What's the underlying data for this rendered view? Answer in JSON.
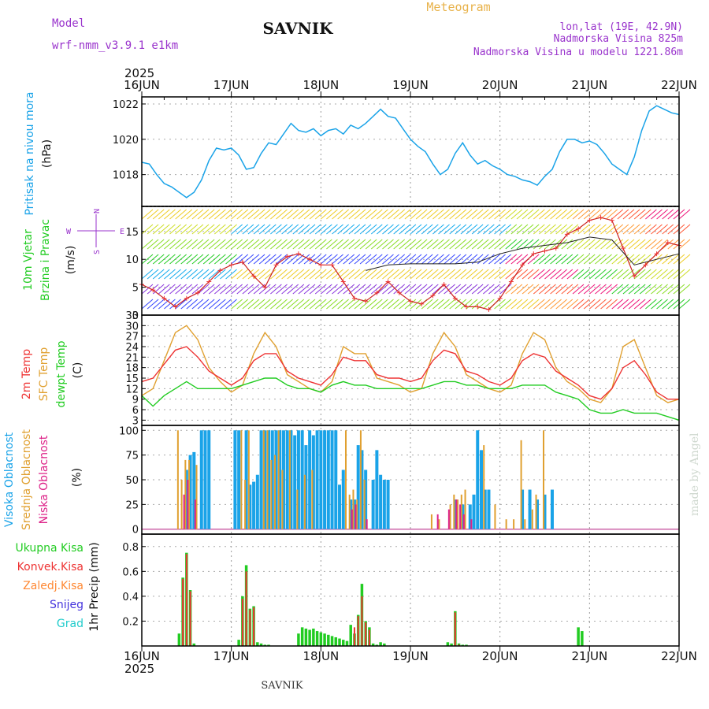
{
  "header": {
    "model_label": "Model",
    "model_name": "wrf-nmm_v3.9.1 e1km",
    "station": "SAVNIK",
    "product": "Meteogram",
    "lonlat": "lon,lat (19E, 42.9N)",
    "elevation": "Nadmorska Visina 825m",
    "model_elevation": "Nadmorska Visina u modelu 1221.86m",
    "year": "2025",
    "footer_station": "SAVNIK",
    "credit": "made by Angel"
  },
  "time_axis": {
    "range_hours": [
      0,
      144
    ],
    "ticks": [
      {
        "h": 0,
        "label": "16JUN"
      },
      {
        "h": 24,
        "label": "17JUN"
      },
      {
        "h": 48,
        "label": "18JUN"
      },
      {
        "h": 72,
        "label": "19JUN"
      },
      {
        "h": 96,
        "label": "20JUN"
      },
      {
        "h": 120,
        "label": "21JUN"
      },
      {
        "h": 144,
        "label": "22JUN"
      }
    ]
  },
  "colors": {
    "pressure": "#1aa3e8",
    "temp2m": "#ee3333",
    "sfc": "#e0a030",
    "dewpt": "#22cc22",
    "high_cloud": "#1aa3e8",
    "mid_cloud": "#e0a030",
    "low_cloud": "#dd2288",
    "rain_total": "#22cc22",
    "rain_conv": "#ee3333",
    "freezing": "#ff8833",
    "snow": "#4433dd",
    "hail": "#22cccc",
    "wind_label": "#22cc22",
    "compass": "#9933cc",
    "header": "#9933cc",
    "product": "#e8b24a"
  },
  "chart_data": [
    {
      "type": "line",
      "panel": "pressure",
      "ylabel_lines": [
        "Pritisak na nivou mora",
        "(hPa)"
      ],
      "ylim": [
        1016.2,
        1022.4
      ],
      "yticks": [
        1018,
        1020,
        1022
      ],
      "series": [
        {
          "hours": [
            0,
            2,
            4,
            6,
            8,
            10,
            12,
            14,
            16,
            18,
            20,
            22,
            24,
            26,
            28,
            30,
            32,
            34,
            36,
            38,
            40,
            42,
            44,
            46,
            48,
            50,
            52,
            54,
            56,
            58,
            60,
            62,
            64,
            66,
            68,
            70,
            72,
            74,
            76,
            78,
            80,
            82,
            84,
            86,
            88,
            90,
            92,
            94,
            96,
            98,
            100,
            102,
            104,
            106,
            108,
            110,
            112,
            114,
            116,
            118,
            120,
            122,
            124,
            126,
            128,
            130,
            132,
            134,
            136,
            138,
            140,
            142,
            144
          ],
          "values": [
            1018.7,
            1018.6,
            1018.0,
            1017.5,
            1017.3,
            1017.0,
            1016.7,
            1017.0,
            1017.7,
            1018.8,
            1019.5,
            1019.4,
            1019.5,
            1019.1,
            1018.3,
            1018.4,
            1019.2,
            1019.8,
            1019.7,
            1020.3,
            1020.9,
            1020.5,
            1020.4,
            1020.6,
            1020.2,
            1020.5,
            1020.6,
            1020.3,
            1020.8,
            1020.6,
            1020.9,
            1021.3,
            1021.7,
            1021.3,
            1021.2,
            1020.6,
            1020.0,
            1019.6,
            1019.3,
            1018.6,
            1018.0,
            1018.3,
            1019.2,
            1019.8,
            1019.1,
            1018.6,
            1018.8,
            1018.5,
            1018.3,
            1018.0,
            1017.9,
            1017.7,
            1017.6,
            1017.4,
            1017.9,
            1018.3,
            1019.3,
            1020.0,
            1020.0,
            1019.8,
            1019.9,
            1019.7,
            1019.2,
            1018.6,
            1018.3,
            1018.0,
            1019.0,
            1020.5,
            1021.6,
            1021.9,
            1021.7,
            1021.5,
            1021.4
          ]
        }
      ]
    },
    {
      "type": "barbs",
      "panel": "wind",
      "ylabel_lines": [
        "10m Vjetar",
        "Brzina i Pravac",
        "(m/s)"
      ],
      "compass": {
        "n": "N",
        "s": "S",
        "w": "W",
        "e": "E"
      },
      "ylim": [
        0,
        19.5
      ],
      "yticks": [
        0,
        5,
        10,
        15
      ],
      "speed_series": {
        "name": "speed",
        "hours": [
          0,
          3,
          6,
          9,
          12,
          15,
          18,
          21,
          24,
          27,
          30,
          33,
          36,
          39,
          42,
          45,
          48,
          51,
          54,
          57,
          60,
          63,
          66,
          69,
          72,
          75,
          78,
          81,
          84,
          87,
          90,
          93,
          96,
          99,
          102,
          105,
          108,
          111,
          114,
          117,
          120,
          123,
          126,
          129,
          132,
          135,
          138,
          141,
          144
        ],
        "values": [
          5.5,
          4.5,
          3,
          1.5,
          3,
          4,
          6,
          8,
          9,
          9.5,
          7,
          5,
          9,
          10.5,
          11,
          10,
          9,
          9,
          6,
          3,
          2.5,
          4,
          6,
          4,
          2.5,
          2,
          3.5,
          5.5,
          3,
          1.5,
          1.5,
          1,
          3,
          6,
          9,
          11,
          11.5,
          12,
          14.5,
          15.5,
          17,
          17.5,
          17,
          12,
          7,
          9,
          11,
          13,
          12.5
        ]
      },
      "gust_series": {
        "name": "gust",
        "hours": [
          60,
          66,
          72,
          78,
          84,
          90,
          96,
          102,
          108,
          114,
          120,
          126,
          132,
          138,
          144
        ],
        "values": [
          8,
          9,
          9.2,
          9.2,
          9.2,
          9.5,
          11,
          12,
          12.5,
          13,
          14,
          13.5,
          9,
          10,
          11
        ]
      }
    },
    {
      "type": "line",
      "panel": "temperature",
      "ylabel_lines": [
        "2m Temp",
        "SFC Temp",
        "dewpt Temp",
        "(C)"
      ],
      "ylim": [
        1.5,
        33
      ],
      "yticks": [
        3,
        6,
        9,
        12,
        15,
        18,
        21,
        24,
        27,
        30,
        33
      ],
      "series": [
        {
          "key": "sfc",
          "hours": [
            0,
            3,
            6,
            9,
            12,
            15,
            18,
            21,
            24,
            27,
            30,
            33,
            36,
            39,
            42,
            45,
            48,
            51,
            54,
            57,
            60,
            63,
            66,
            69,
            72,
            75,
            78,
            81,
            84,
            87,
            90,
            93,
            96,
            99,
            102,
            105,
            108,
            111,
            114,
            117,
            120,
            123,
            126,
            129,
            132,
            135,
            138,
            141,
            144
          ],
          "values": [
            10,
            12,
            20,
            28,
            30,
            26,
            18,
            14,
            11,
            13,
            22,
            28,
            24,
            16,
            14,
            12,
            11,
            14,
            24,
            22,
            22,
            15,
            14,
            13,
            11,
            12,
            22,
            28,
            24,
            16,
            14,
            12,
            11,
            13,
            22,
            28,
            26,
            18,
            14,
            12,
            9,
            8,
            12,
            24,
            26,
            18,
            10,
            8,
            9
          ]
        },
        {
          "key": "temp2m",
          "hours": [
            0,
            3,
            6,
            9,
            12,
            15,
            18,
            21,
            24,
            27,
            30,
            33,
            36,
            39,
            42,
            45,
            48,
            51,
            54,
            57,
            60,
            63,
            66,
            69,
            72,
            75,
            78,
            81,
            84,
            87,
            90,
            93,
            96,
            99,
            102,
            105,
            108,
            111,
            114,
            117,
            120,
            123,
            126,
            129,
            132,
            135,
            138,
            141,
            144
          ],
          "values": [
            14,
            15,
            19,
            23,
            24,
            21,
            17,
            15,
            13,
            15,
            20,
            22,
            22,
            17,
            15,
            14,
            13,
            16,
            21,
            20,
            20,
            16,
            15,
            15,
            14,
            15,
            20,
            23,
            22,
            17,
            16,
            14,
            13,
            15,
            20,
            22,
            21,
            17,
            15,
            13,
            10,
            9,
            12,
            18,
            20,
            16,
            11,
            9,
            9
          ]
        },
        {
          "key": "dewpt",
          "hours": [
            0,
            3,
            6,
            9,
            12,
            15,
            18,
            21,
            24,
            27,
            30,
            33,
            36,
            39,
            42,
            45,
            48,
            51,
            54,
            57,
            60,
            63,
            66,
            69,
            72,
            75,
            78,
            81,
            84,
            87,
            90,
            93,
            96,
            99,
            102,
            105,
            108,
            111,
            114,
            117,
            120,
            123,
            126,
            129,
            132,
            135,
            138,
            141,
            144
          ],
          "values": [
            10,
            7,
            10,
            12,
            14,
            12,
            12,
            12,
            12,
            13,
            14,
            15,
            15,
            13,
            12,
            12,
            11,
            13,
            14,
            13,
            13,
            12,
            12,
            12,
            12,
            12,
            13,
            14,
            14,
            13,
            13,
            12,
            12,
            12,
            13,
            13,
            13,
            11,
            10,
            9,
            6,
            5,
            5,
            6,
            5,
            5,
            5,
            4,
            3
          ]
        }
      ]
    },
    {
      "type": "bar",
      "panel": "cloud",
      "ylabel_lines": [
        "Visoka Oblacnost",
        "Srednja Oblacnost",
        "Niska Oblacnost",
        "(%)"
      ],
      "ylim": [
        -5,
        105
      ],
      "yticks": [
        0,
        25,
        50,
        75,
        100
      ],
      "series": [
        {
          "key": "high_cloud",
          "hours": [
            12,
            13,
            14,
            16,
            17,
            18,
            25,
            26,
            28,
            29,
            30,
            31,
            32,
            33,
            34,
            35,
            36,
            37,
            38,
            39,
            40,
            41,
            42,
            43,
            44,
            45,
            46,
            47,
            48,
            49,
            50,
            51,
            52,
            53,
            54,
            56,
            57,
            58,
            59,
            60,
            62,
            63,
            64,
            65,
            66,
            84,
            86,
            88,
            89,
            90,
            91,
            92,
            93,
            102,
            104,
            106,
            108,
            110
          ],
          "values": [
            60,
            75,
            78,
            100,
            100,
            100,
            100,
            100,
            100,
            45,
            48,
            55,
            100,
            100,
            100,
            100,
            100,
            100,
            100,
            100,
            100,
            95,
            100,
            100,
            85,
            100,
            95,
            100,
            100,
            100,
            100,
            100,
            100,
            45,
            60,
            30,
            30,
            85,
            80,
            60,
            50,
            80,
            55,
            50,
            50,
            30,
            25,
            25,
            35,
            100,
            80,
            40,
            40,
            40,
            40,
            30,
            35,
            40
          ]
        },
        {
          "key": "mid_cloud",
          "hours": [
            10,
            11,
            12,
            13,
            15,
            27,
            28,
            29,
            33,
            34,
            35,
            36,
            37,
            38,
            40,
            42,
            44,
            46,
            55,
            56,
            57,
            58,
            59,
            60,
            78,
            80,
            83,
            84,
            85,
            86,
            87,
            92,
            95,
            98,
            100,
            102,
            103,
            105,
            106,
            108
          ],
          "values": [
            100,
            50,
            70,
            70,
            65,
            100,
            50,
            100,
            100,
            100,
            70,
            75,
            100,
            60,
            100,
            40,
            55,
            60,
            100,
            35,
            40,
            30,
            100,
            50,
            15,
            10,
            25,
            35,
            30,
            35,
            40,
            85,
            25,
            10,
            10,
            90,
            10,
            20,
            35,
            100
          ]
        },
        {
          "key": "low_cloud",
          "hours": [
            11,
            12,
            14,
            56,
            57,
            60,
            79,
            82,
            84,
            85,
            86,
            88
          ],
          "values": [
            35,
            50,
            30,
            20,
            25,
            10,
            15,
            20,
            30,
            25,
            15,
            10
          ]
        }
      ]
    },
    {
      "type": "bar",
      "panel": "precip",
      "ylabel_lines": [
        "1hr Precip (mm)"
      ],
      "legend": [
        "Ukupna Kisa",
        "Konvek.Kisa",
        "Zaledj.Kisa",
        "Snijeg",
        "Grad"
      ],
      "ylim": [
        0,
        0.9
      ],
      "yticks": [
        0.2,
        0.4,
        0.6,
        0.8
      ],
      "series": [
        {
          "key": "rain_total",
          "hours": [
            10,
            11,
            12,
            13,
            14,
            26,
            27,
            28,
            29,
            30,
            31,
            32,
            33,
            34,
            42,
            43,
            44,
            45,
            46,
            47,
            48,
            49,
            50,
            51,
            52,
            53,
            54,
            55,
            56,
            57,
            58,
            59,
            60,
            61,
            62,
            63,
            64,
            65,
            82,
            83,
            84,
            85,
            86,
            87,
            117,
            118
          ],
          "values": [
            0.1,
            0.55,
            0.75,
            0.45,
            0.02,
            0.05,
            0.4,
            0.65,
            0.3,
            0.32,
            0.03,
            0.02,
            0.01,
            0.01,
            0.1,
            0.15,
            0.14,
            0.13,
            0.14,
            0.12,
            0.11,
            0.1,
            0.09,
            0.08,
            0.07,
            0.06,
            0.05,
            0.04,
            0.17,
            0.1,
            0.25,
            0.5,
            0.2,
            0.15,
            0.02,
            0.01,
            0.03,
            0.02,
            0.03,
            0.02,
            0.28,
            0.02,
            0.01,
            0.01,
            0.15,
            0.12
          ]
        },
        {
          "key": "rain_conv",
          "hours": [
            11,
            12,
            13,
            27,
            28,
            29,
            30,
            57,
            58,
            59,
            60,
            61,
            84,
            85
          ],
          "values": [
            0.54,
            0.74,
            0.44,
            0.38,
            0.6,
            0.29,
            0.31,
            0.15,
            0.24,
            0.4,
            0.19,
            0.13,
            0.27,
            0.01
          ]
        }
      ]
    }
  ]
}
